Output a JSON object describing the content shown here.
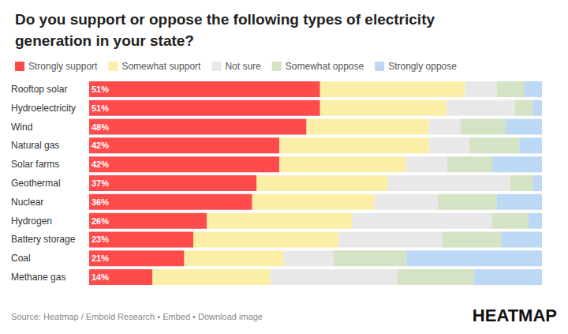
{
  "chart_data": {
    "type": "bar",
    "orientation": "horizontal",
    "stacked": true,
    "title": "Do you support or oppose the following types of electricity generation in your state?",
    "source": "Source: Heatmap / Embold Research • Embed • Download image",
    "logo": "HEATMAP",
    "legend": "top-left",
    "grid": false,
    "tick_labels": "y",
    "data_labels": true,
    "xlim": [
      0,
      100
    ],
    "xticks": [
      0,
      100
    ],
    "categories": [
      "Rooftop solar",
      "Hydroelectricity",
      "Wind",
      "Natural gas",
      "Solar farms",
      "Geothermal",
      "Nuclear",
      "Hydrogen",
      "Battery storage",
      "Coal",
      "Methane gas"
    ],
    "series": [
      {
        "name": "Strongly support",
        "color": "#ff4b4b",
        "values": [
          51,
          51,
          48,
          42,
          42,
          37,
          36,
          26,
          23,
          21,
          14
        ],
        "value_labels": [
          "51%",
          "51%",
          "48%",
          "42%",
          "42%",
          "37%",
          "36%",
          "26%",
          "23%",
          "21%",
          "14%"
        ]
      },
      {
        "name": "Somewhat support",
        "color": "#fbefa8",
        "values": [
          32,
          28,
          27,
          33,
          28,
          29,
          27,
          32,
          32,
          22,
          26
        ]
      },
      {
        "name": "Not sure",
        "color": "#e8e8e8",
        "values": [
          7,
          15,
          7,
          9,
          9,
          27,
          14,
          31,
          23,
          11,
          28
        ]
      },
      {
        "name": "Somewhat oppose",
        "color": "#d3e3c3",
        "values": [
          6,
          4,
          10,
          11,
          10,
          5,
          13,
          8,
          13,
          16,
          17
        ]
      },
      {
        "name": "Strongly oppose",
        "color": "#bdd8f4",
        "values": [
          4,
          2,
          8,
          5,
          11,
          2,
          10,
          3,
          9,
          30,
          15
        ]
      }
    ]
  }
}
